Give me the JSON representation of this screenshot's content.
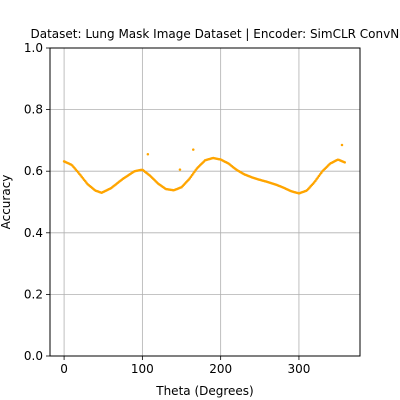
{
  "chart_data": {
    "type": "scatter",
    "title": "Dataset: Lung Mask Image Dataset | Encoder: SimCLR ConvNeXt",
    "xlabel": "Theta (Degrees)",
    "ylabel": "Accuracy",
    "xlim": [
      -18,
      378
    ],
    "ylim": [
      0.0,
      1.0
    ],
    "xticks": [
      0,
      100,
      200,
      300
    ],
    "yticks": [
      0.0,
      0.2,
      0.4,
      0.6,
      0.8,
      1.0
    ],
    "xtick_labels": [
      "0",
      "100",
      "200",
      "300"
    ],
    "ytick_labels": [
      "0.0",
      "0.2",
      "0.4",
      "0.6",
      "0.8",
      "1.0"
    ],
    "grid": true,
    "marker_color": "#ffa500",
    "curve_anchors": {
      "x": [
        0,
        10,
        20,
        30,
        40,
        48,
        60,
        75,
        90,
        100,
        110,
        120,
        130,
        140,
        150,
        160,
        170,
        180,
        190,
        200,
        210,
        220,
        230,
        240,
        250,
        260,
        270,
        280,
        290,
        300,
        310,
        320,
        330,
        340,
        350,
        359
      ],
      "y": [
        0.632,
        0.62,
        0.59,
        0.558,
        0.537,
        0.53,
        0.545,
        0.575,
        0.6,
        0.605,
        0.585,
        0.56,
        0.542,
        0.538,
        0.548,
        0.575,
        0.61,
        0.635,
        0.643,
        0.638,
        0.625,
        0.605,
        0.59,
        0.58,
        0.572,
        0.565,
        0.557,
        0.547,
        0.535,
        0.528,
        0.537,
        0.565,
        0.6,
        0.625,
        0.638,
        0.628
      ]
    },
    "outliers": {
      "x": [
        107,
        148,
        165,
        355
      ],
      "y": [
        0.655,
        0.605,
        0.67,
        0.685
      ]
    }
  }
}
